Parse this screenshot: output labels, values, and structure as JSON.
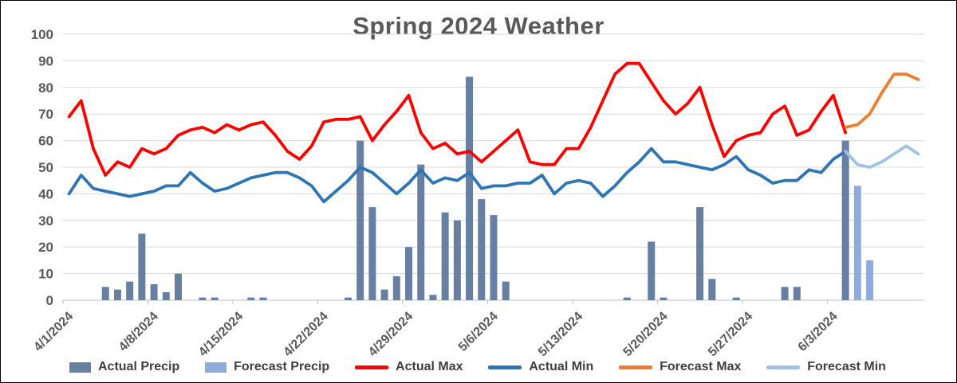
{
  "chart_data": {
    "type": "combo",
    "title": "Spring 2024 Weather",
    "ylim": [
      0,
      100
    ],
    "y_ticks": [
      0,
      10,
      20,
      30,
      40,
      50,
      60,
      70,
      80,
      90,
      100
    ],
    "x_tick_labels": [
      "4/1/2024",
      "4/8/2024",
      "4/15/2024",
      "4/22/2024",
      "4/29/2024",
      "5/6/2024",
      "5/13/2024",
      "5/20/2024",
      "5/27/2024",
      "6/3/2024"
    ],
    "x_tick_day_indices": [
      0,
      7,
      14,
      21,
      28,
      35,
      42,
      49,
      56,
      63
    ],
    "n_days": 71,
    "grid": true,
    "legend_position": "bottom",
    "series": [
      {
        "name": "Actual Precip",
        "type": "bar",
        "color": "#677FA2",
        "offset": 0,
        "values": [
          0,
          0,
          0,
          5,
          4,
          7,
          25,
          6,
          3,
          10,
          0,
          1,
          1,
          0,
          0,
          1,
          1,
          0,
          0,
          0,
          0,
          0,
          0,
          1,
          60,
          35,
          4,
          9,
          20,
          51,
          2,
          33,
          30,
          84,
          38,
          32,
          7,
          0,
          0,
          0,
          0,
          0,
          0,
          0,
          0,
          0,
          1,
          0,
          22,
          1,
          0,
          0,
          35,
          8,
          0,
          1,
          0,
          0,
          0,
          5,
          5,
          0,
          0,
          0,
          60
        ]
      },
      {
        "name": "Forecast Precip",
        "type": "bar",
        "color": "#8FAADC",
        "offset": 65,
        "values": [
          43,
          15
        ]
      },
      {
        "name": "Actual Max",
        "type": "line",
        "color": "#FF0000",
        "offset": 0,
        "values": [
          69,
          75,
          57,
          47,
          52,
          50,
          57,
          55,
          57,
          62,
          64,
          65,
          63,
          66,
          64,
          66,
          67,
          62,
          56,
          53,
          58,
          67,
          68,
          68,
          69,
          60,
          66,
          71,
          77,
          63,
          57,
          59,
          55,
          56,
          52,
          56,
          60,
          64,
          52,
          51,
          51,
          57,
          57,
          65,
          75,
          85,
          89,
          89,
          82,
          75,
          70,
          74,
          80,
          66,
          54,
          60,
          62,
          63,
          70,
          73,
          62,
          64,
          71,
          77,
          63
        ]
      },
      {
        "name": "Actual Min",
        "type": "line",
        "color": "#2E75B6",
        "offset": 0,
        "values": [
          40,
          47,
          42,
          41,
          40,
          39,
          40,
          41,
          43,
          43,
          48,
          44,
          41,
          42,
          44,
          46,
          47,
          48,
          48,
          46,
          43,
          37,
          41,
          45,
          50,
          48,
          44,
          40,
          44,
          49,
          44,
          46,
          45,
          48,
          42,
          43,
          43,
          44,
          44,
          47,
          40,
          44,
          45,
          44,
          39,
          43,
          48,
          52,
          57,
          52,
          52,
          51,
          50,
          49,
          51,
          54,
          49,
          47,
          44,
          45,
          45,
          49,
          48,
          53,
          56
        ]
      },
      {
        "name": "Forecast Max",
        "type": "line",
        "color": "#ED7D31",
        "offset": 64,
        "values": [
          65,
          66,
          70,
          78,
          85,
          85,
          83
        ]
      },
      {
        "name": "Forecast Min",
        "type": "line",
        "color": "#9DC3E6",
        "offset": 64,
        "values": [
          56,
          51,
          50,
          52,
          55,
          58,
          55
        ]
      }
    ]
  },
  "styles": {
    "title_color": "#595959",
    "axis_label_color": "#595959",
    "gridline_color": "#D9D9D9",
    "axis_line_color": "#BFBFBF",
    "legend_text_color": "#3F3F3F"
  }
}
